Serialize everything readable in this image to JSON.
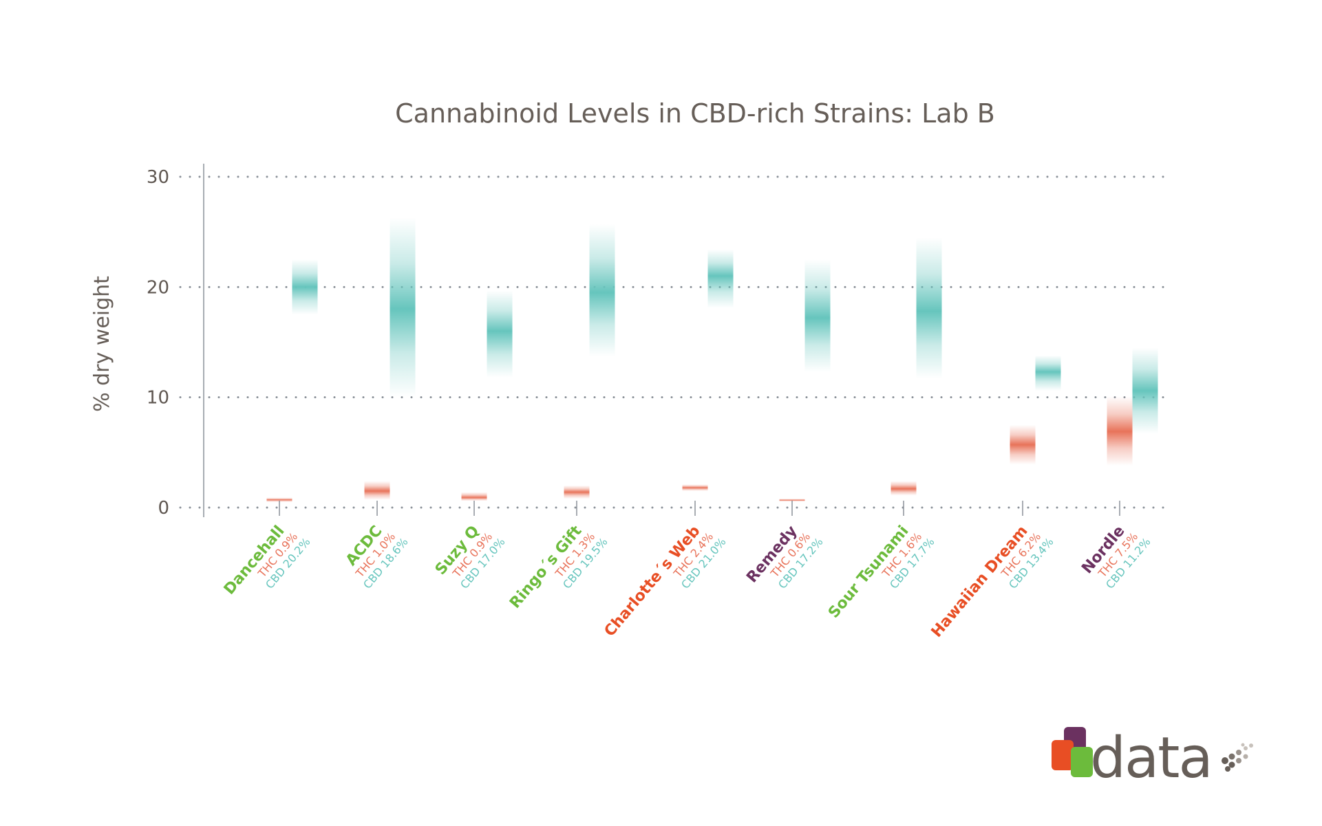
{
  "chart_data": {
    "type": "bar",
    "subtype": "floating-gradient-range",
    "title": "Cannabinoid Levels in CBD-rich Strains: Lab B",
    "xlabel": "",
    "ylabel": "% dry weight",
    "ylim": [
      0,
      30
    ],
    "yticks": [
      0,
      10,
      20,
      30
    ],
    "ytick_labels": [
      "0",
      "10",
      "20",
      "30"
    ],
    "grid": "horizontal-dotted",
    "legend": null,
    "colors": {
      "thc": "#e8735a",
      "cbd": "#66c5bd",
      "axis": "#8a9098",
      "text": "#665e58"
    },
    "categories": [
      "Dancehall",
      "ACDC",
      "Suzy Q",
      "Ringo´s Gift",
      "Charlotte´s Web",
      "Remedy",
      "Sour Tsunami",
      "Hawaiian Dream",
      "Nordle"
    ],
    "category_colors": [
      "#6cbb3c",
      "#6cbb3c",
      "#6cbb3c",
      "#6cbb3c",
      "#e84e24",
      "#6b3160",
      "#6cbb3c",
      "#e84e24",
      "#6b3160"
    ],
    "series": [
      {
        "name": "THC",
        "labels": [
          "THC 0.9%",
          "THC 1.0%",
          "THC 0.9%",
          "THC 1.3%",
          "THC 2.4%",
          "THC 0.6%",
          "THC 1.6%",
          "THC 6.2%",
          "THC 7.5%"
        ],
        "values": [
          0.9,
          1.0,
          0.9,
          1.3,
          2.4,
          0.6,
          1.6,
          6.2,
          7.5
        ],
        "range_low": [
          0.5,
          0.7,
          0.6,
          0.8,
          1.5,
          0.6,
          1.1,
          3.9,
          3.8
        ],
        "range_high": [
          0.9,
          2.4,
          1.4,
          2.0,
          2.1,
          0.8,
          2.4,
          7.5,
          10.1
        ],
        "center": [
          0.7,
          1.5,
          0.9,
          1.4,
          1.8,
          0.7,
          1.7,
          5.7,
          6.9
        ]
      },
      {
        "name": "CBD",
        "labels": [
          "CBD 20.2%",
          "CBD 18.6%",
          "CBD 17.0%",
          "CBD 19.5%",
          "CBD 21.0%",
          "CBD 17.2%",
          "CBD 17.7%",
          "CBD 13.4%",
          "CBD 11.2%"
        ],
        "values": [
          20.2,
          18.6,
          17.0,
          19.5,
          21.0,
          17.2,
          17.7,
          13.4,
          11.2
        ],
        "range_low": [
          17.5,
          10.0,
          11.8,
          13.7,
          18.1,
          12.3,
          11.7,
          10.6,
          6.7
        ],
        "range_high": [
          22.5,
          26.3,
          19.7,
          25.7,
          23.4,
          22.5,
          24.5,
          13.8,
          14.5
        ],
        "center": [
          20.0,
          18.0,
          16.0,
          19.5,
          21.0,
          17.2,
          17.8,
          12.3,
          10.6
        ]
      }
    ]
  },
  "logo": {
    "text": "data",
    "colors": [
      "#6b3160",
      "#e84e24",
      "#6cbb3c",
      "#665e58"
    ]
  }
}
